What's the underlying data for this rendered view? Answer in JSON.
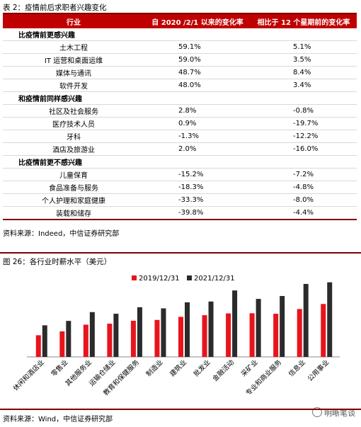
{
  "table_caption": "表 2：疫情前后求职者兴趣变化",
  "table": {
    "headers": [
      "行业",
      "自 2020 /2/1 以来的变化率",
      "相比于 12 个星期前的变化率"
    ],
    "sections": [
      {
        "title": "比疫情前更感兴趣",
        "rows": [
          {
            "name": "土木工程",
            "a": "59.1%",
            "b": "5.1%"
          },
          {
            "name": "IT 运营和桌面运维",
            "a": "59.0%",
            "b": "3.5%"
          },
          {
            "name": "媒体与通讯",
            "a": "48.7%",
            "b": "8.4%"
          },
          {
            "name": "软件开发",
            "a": "48.0%",
            "b": "3.4%"
          }
        ]
      },
      {
        "title": "和疫情前同样感兴趣",
        "rows": [
          {
            "name": "社区及社会服务",
            "a": "2.8%",
            "b": "-0.8%"
          },
          {
            "name": "医疗技术人员",
            "a": "0.9%",
            "b": "-19.7%"
          },
          {
            "name": "牙科",
            "a": "-1.3%",
            "b": "-12.2%"
          },
          {
            "name": "酒店及旅游业",
            "a": "2.0%",
            "b": "-16.0%"
          }
        ]
      },
      {
        "title": "比疫情前更不感兴趣",
        "rows": [
          {
            "name": "儿童保育",
            "a": "-15.2%",
            "b": "-7.2%"
          },
          {
            "name": "食品准备与服务",
            "a": "-18.3%",
            "b": "-4.8%"
          },
          {
            "name": "个人护理和家庭健康",
            "a": "-33.3%",
            "b": "-8.0%"
          },
          {
            "name": "装载和储存",
            "a": "-39.8%",
            "b": "-4.4%"
          }
        ]
      }
    ],
    "source": "资料来源：Indeed，中信证券研究部"
  },
  "chart_caption": "图 26：各行业时薪水平（美元）",
  "chart_source": "资料来源：Wind，中信证券研究部",
  "watermark": "明晰笔谈",
  "chart_data": {
    "type": "bar",
    "categories": [
      "休闲和酒店业",
      "零售业",
      "其他服务业",
      "运输仓储业",
      "教育和保健服务",
      "制造业",
      "建筑业",
      "批发业",
      "金融活动",
      "采矿业",
      "专业和商业服务",
      "信息业",
      "公用事业"
    ],
    "series": [
      {
        "name": "2019/12/31",
        "color": "#e8141c",
        "values": [
          13.3,
          15.7,
          19.8,
          20.4,
          22.2,
          22.7,
          24.6,
          25.6,
          26.7,
          26.8,
          26.5,
          29.4,
          32.5
        ]
      },
      {
        "name": "2021/12/31",
        "color": "#2b2b2b",
        "values": [
          19.4,
          22.1,
          27.5,
          26.5,
          30.5,
          29.8,
          33.5,
          34.0,
          40.8,
          35.6,
          37.4,
          44.8,
          45.8
        ]
      }
    ],
    "ylim": [
      0,
      50
    ],
    "legend": "top-center",
    "grid": false
  }
}
